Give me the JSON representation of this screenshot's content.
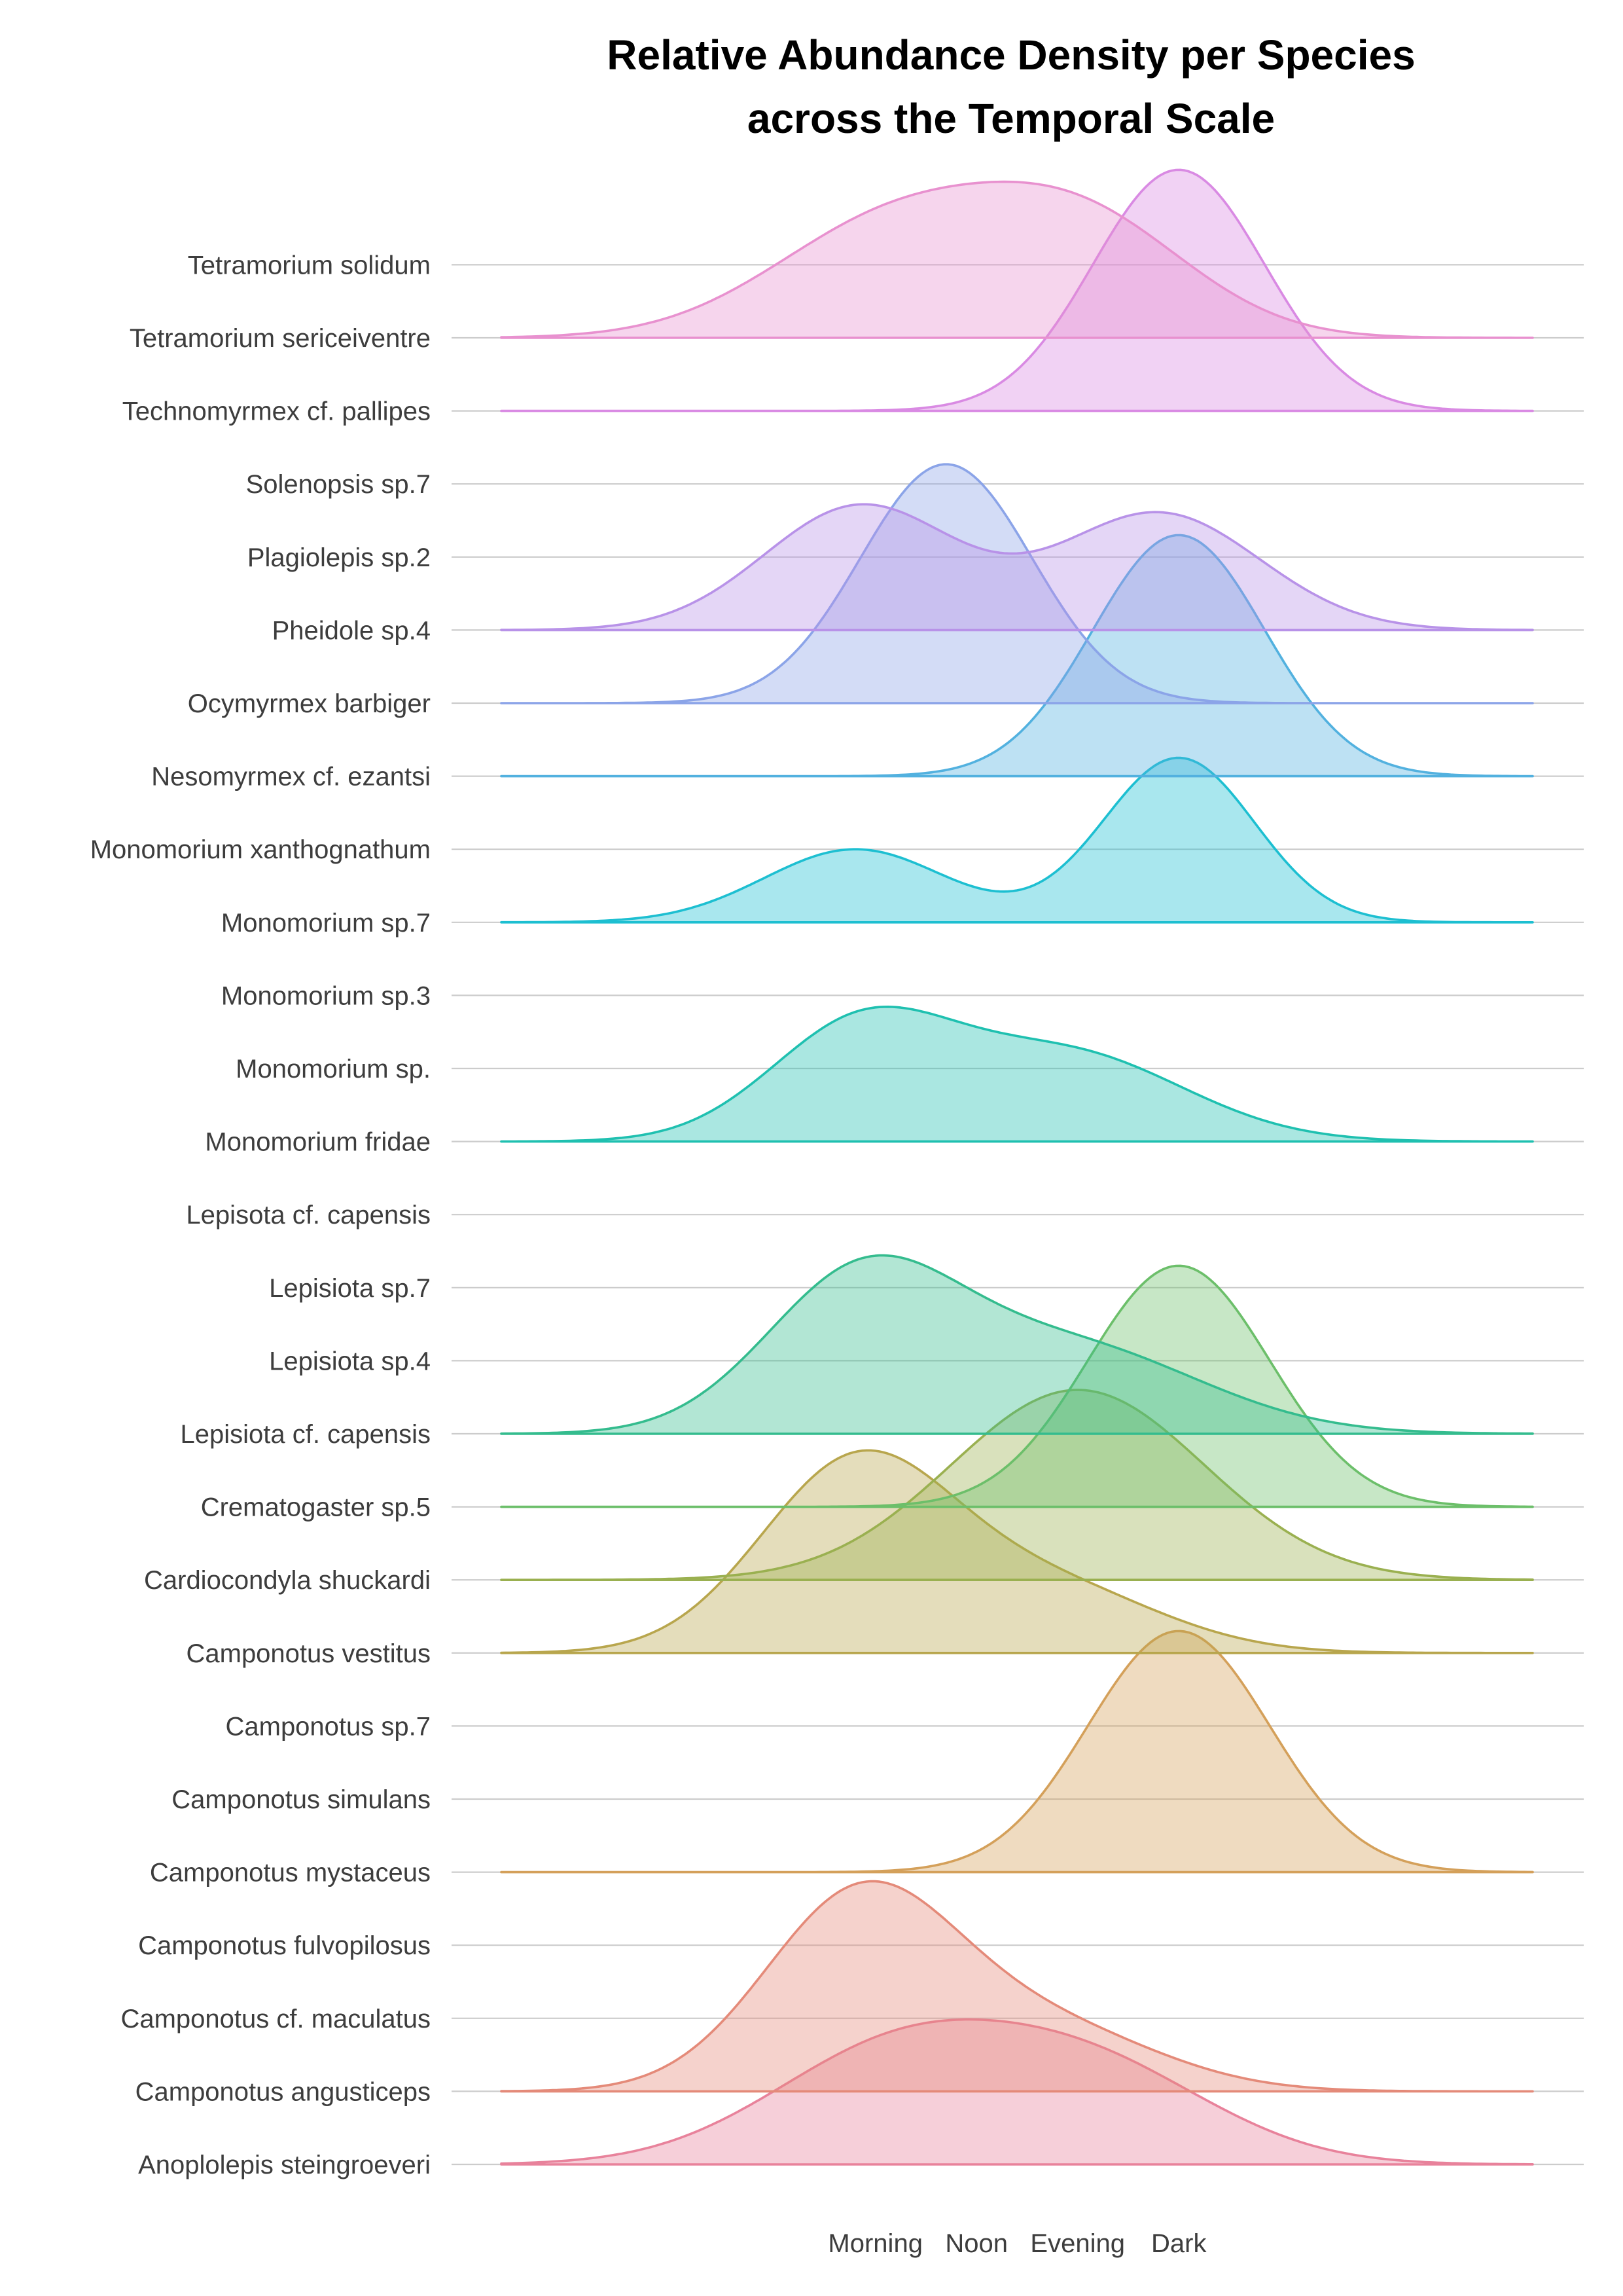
{
  "chart_data": {
    "type": "ridgeline",
    "title": [
      "Relative Abundance Density per Species",
      "across the Temporal Scale"
    ],
    "xlabel": "",
    "ylabel": "",
    "x_ticks": [
      {
        "label": "Morning",
        "value": 1
      },
      {
        "label": "Noon",
        "value": 2
      },
      {
        "label": "Evening",
        "value": 3
      },
      {
        "label": "Dark",
        "value": 4
      }
    ],
    "xlim": [
      -2.7,
      7.5
    ],
    "grid": "horizontal",
    "legend": "none",
    "categories": [
      "Anoplolepis steingroeveri",
      "Camponotus angusticeps",
      "Camponotus cf. maculatus",
      "Camponotus fulvopilosus",
      "Camponotus mystaceus",
      "Camponotus simulans",
      "Camponotus sp.7",
      "Camponotus vestitus",
      "Cardiocondyla shuckardi",
      "Crematogaster sp.5",
      "Lepisiota cf. capensis",
      "Lepisiota sp.4",
      "Lepisiota sp.7",
      "Lepisota cf. capensis",
      "Monomorium fridae",
      "Monomorium sp.",
      "Monomorium sp.3",
      "Monomorium sp.7",
      "Monomorium xanthognathum",
      "Nesomyrmex cf. ezantsi",
      "Ocymyrmex barbiger",
      "Pheidole sp.4",
      "Plagiolepis sp.2",
      "Solenopsis sp.7",
      "Technomyrmex cf. pallipes",
      "Tetramorium sericeiventre",
      "Tetramorium solidum"
    ],
    "ridges": [
      {
        "category_index": 0,
        "color": "#e8829b",
        "peaks": [
          {
            "x": 1.2,
            "height": 1.54,
            "width": 1.25
          },
          {
            "x": 3.2,
            "height": 1.2,
            "width": 1.2
          }
        ]
      },
      {
        "category_index": 1,
        "color": "#e48a79",
        "peaks": [
          {
            "x": 0.85,
            "height": 2.65,
            "width": 0.95
          },
          {
            "x": 2.7,
            "height": 0.85,
            "width": 1.1
          }
        ]
      },
      {
        "category_index": 4,
        "color": "#d4a05a",
        "peaks": [
          {
            "x": 4.0,
            "height": 3.3,
            "width": 0.9
          }
        ]
      },
      {
        "category_index": 7,
        "color": "#b8a64d",
        "peaks": [
          {
            "x": 0.8,
            "height": 2.55,
            "width": 0.95
          },
          {
            "x": 2.7,
            "height": 0.9,
            "width": 1.1
          }
        ]
      },
      {
        "category_index": 8,
        "color": "#9ab050",
        "peaks": [
          {
            "x": 3.0,
            "height": 2.6,
            "width": 1.25
          }
        ]
      },
      {
        "category_index": 9,
        "color": "#6cbf6a",
        "peaks": [
          {
            "x": 4.0,
            "height": 3.3,
            "width": 0.9
          }
        ]
      },
      {
        "category_index": 10,
        "color": "#34bc8e",
        "peaks": [
          {
            "x": 0.85,
            "height": 2.05,
            "width": 0.95
          },
          {
            "x": 2.9,
            "height": 1.2,
            "width": 1.3
          }
        ]
      },
      {
        "category_index": 14,
        "color": "#1fc0b0",
        "peaks": [
          {
            "x": 0.85,
            "height": 1.55,
            "width": 0.9
          },
          {
            "x": 2.9,
            "height": 1.2,
            "width": 1.15
          }
        ]
      },
      {
        "category_index": 17,
        "color": "#1dbfd1",
        "peaks": [
          {
            "x": 4.0,
            "height": 2.25,
            "width": 0.75
          },
          {
            "x": 0.8,
            "height": 1.0,
            "width": 0.9
          }
        ]
      },
      {
        "category_index": 19,
        "color": "#52b1df",
        "peaks": [
          {
            "x": 4.0,
            "height": 3.3,
            "width": 0.85
          }
        ]
      },
      {
        "category_index": 20,
        "color": "#8ba4e8",
        "peaks": [
          {
            "x": 1.7,
            "height": 3.27,
            "width": 0.85
          }
        ]
      },
      {
        "category_index": 21,
        "color": "#b892e8",
        "peaks": [
          {
            "x": 0.85,
            "height": 1.7,
            "width": 0.95
          },
          {
            "x": 3.8,
            "height": 1.6,
            "width": 1.0
          }
        ]
      },
      {
        "category_index": 24,
        "color": "#d98ae3",
        "peaks": [
          {
            "x": 4.0,
            "height": 3.3,
            "width": 0.85
          }
        ]
      },
      {
        "category_index": 25,
        "color": "#e891cf",
        "peaks": [
          {
            "x": 1.2,
            "height": 1.6,
            "width": 1.2
          },
          {
            "x": 3.1,
            "height": 1.45,
            "width": 1.05
          }
        ]
      }
    ]
  }
}
